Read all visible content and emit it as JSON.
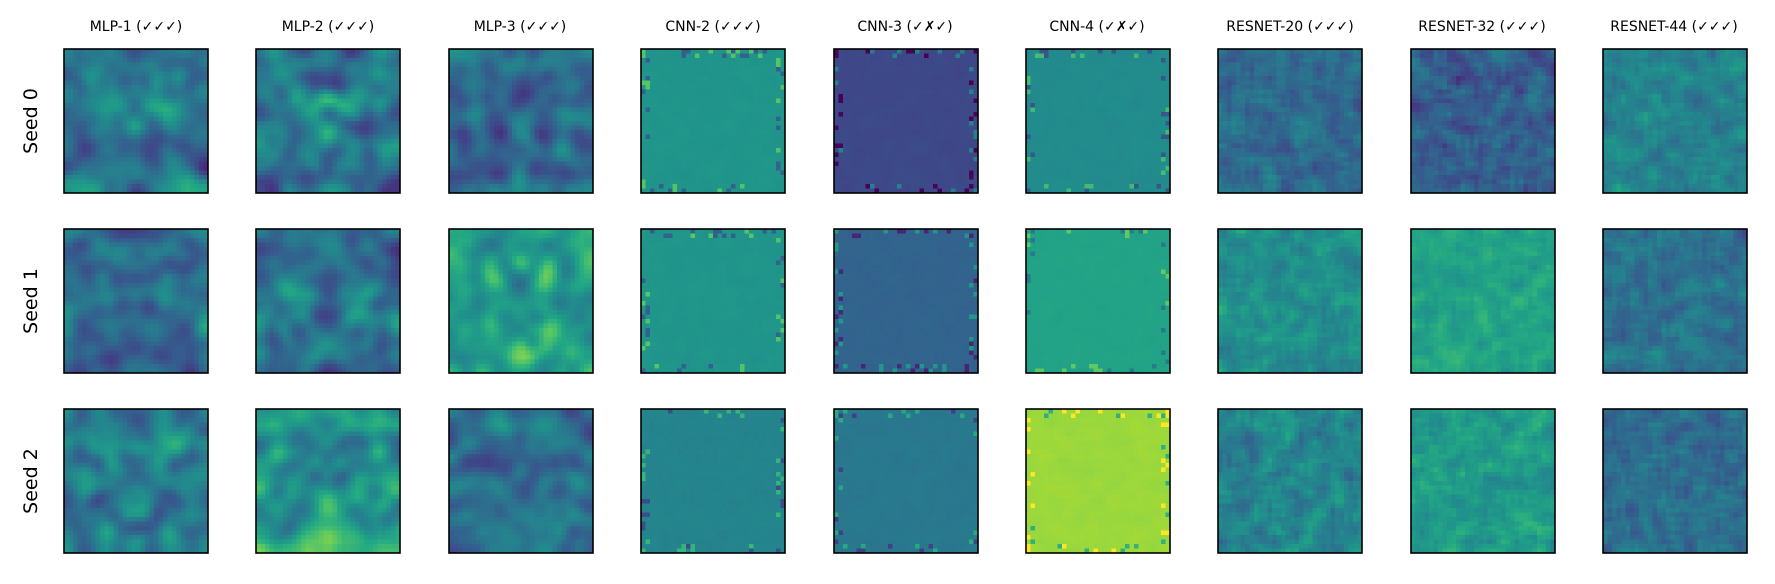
{
  "chart_data": {
    "type": "heatmap",
    "title": "",
    "xlabel": "",
    "ylabel": "",
    "colormap": "viridis",
    "grid": false,
    "axis_ticks": false,
    "cell_resolution": 32,
    "columns": [
      "MLP-1 (✓✓✓)",
      "MLP-2 (✓✓✓)",
      "MLP-3 (✓✓✓)",
      "CNN-2 (✓✓✓)",
      "CNN-3 (✓✗✓)",
      "CNN-4 (✓✗✓)",
      "RESNET-20 (✓✓✓)",
      "RESNET-32 (✓✓✓)",
      "RESNET-44 (✓✓✓)"
    ],
    "rows": [
      "Seed 0",
      "Seed 1",
      "Seed 2"
    ],
    "panels": [
      [
        {
          "pattern": "mlp",
          "mean": 0.42,
          "contrast": 0.55,
          "seed": 11
        },
        {
          "pattern": "mlp",
          "mean": 0.4,
          "contrast": 0.65,
          "seed": 12
        },
        {
          "pattern": "mlp",
          "mean": 0.35,
          "contrast": 0.6,
          "seed": 13
        },
        {
          "pattern": "cnn",
          "mean": 0.52,
          "contrast": 0.12,
          "seed": 14
        },
        {
          "pattern": "cnn",
          "mean": 0.22,
          "contrast": 0.12,
          "seed": 15
        },
        {
          "pattern": "cnn",
          "mean": 0.48,
          "contrast": 0.12,
          "seed": 16
        },
        {
          "pattern": "resnet",
          "mean": 0.35,
          "contrast": 0.3,
          "seed": 17
        },
        {
          "pattern": "resnet",
          "mean": 0.3,
          "contrast": 0.35,
          "seed": 18
        },
        {
          "pattern": "resnet",
          "mean": 0.45,
          "contrast": 0.28,
          "seed": 19
        }
      ],
      [
        {
          "pattern": "mlp",
          "mean": 0.35,
          "contrast": 0.45,
          "seed": 21
        },
        {
          "pattern": "mlp",
          "mean": 0.4,
          "contrast": 0.55,
          "seed": 22
        },
        {
          "pattern": "mlp",
          "mean": 0.55,
          "contrast": 0.55,
          "seed": 23
        },
        {
          "pattern": "cnn",
          "mean": 0.52,
          "contrast": 0.12,
          "seed": 24
        },
        {
          "pattern": "cnn",
          "mean": 0.32,
          "contrast": 0.12,
          "seed": 25
        },
        {
          "pattern": "cnn",
          "mean": 0.58,
          "contrast": 0.1,
          "seed": 26
        },
        {
          "pattern": "resnet",
          "mean": 0.5,
          "contrast": 0.28,
          "seed": 27
        },
        {
          "pattern": "resnet",
          "mean": 0.58,
          "contrast": 0.22,
          "seed": 28
        },
        {
          "pattern": "resnet",
          "mean": 0.38,
          "contrast": 0.28,
          "seed": 29
        }
      ],
      [
        {
          "pattern": "mlp",
          "mean": 0.4,
          "contrast": 0.55,
          "seed": 31
        },
        {
          "pattern": "mlp",
          "mean": 0.55,
          "contrast": 0.6,
          "seed": 32
        },
        {
          "pattern": "mlp",
          "mean": 0.33,
          "contrast": 0.5,
          "seed": 33
        },
        {
          "pattern": "cnn",
          "mean": 0.45,
          "contrast": 0.12,
          "seed": 34
        },
        {
          "pattern": "cnn",
          "mean": 0.4,
          "contrast": 0.12,
          "seed": 35
        },
        {
          "pattern": "cnn",
          "mean": 0.85,
          "contrast": 0.12,
          "seed": 36
        },
        {
          "pattern": "resnet",
          "mean": 0.45,
          "contrast": 0.35,
          "seed": 37
        },
        {
          "pattern": "resnet",
          "mean": 0.55,
          "contrast": 0.3,
          "seed": 38
        },
        {
          "pattern": "resnet",
          "mean": 0.35,
          "contrast": 0.32,
          "seed": 39
        }
      ]
    ]
  }
}
